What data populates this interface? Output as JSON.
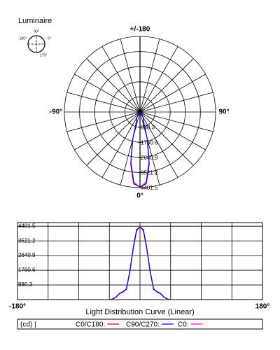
{
  "header": {
    "title": "Luminaire",
    "icon_labels": [
      "90°",
      "180°",
      "0°",
      "270°"
    ]
  },
  "chart_data": [
    {
      "type": "polar",
      "angle_labels": [
        {
          "value": 180,
          "label": "+/-180"
        },
        {
          "value": -90,
          "label": "-90°"
        },
        {
          "value": 90,
          "label": "90°"
        },
        {
          "value": 0,
          "label": "0°"
        }
      ],
      "grid_angle_step": 15,
      "rlim": [
        0,
        4401.5
      ],
      "rticks": [
        880.3,
        1760.6,
        2640.9,
        3521.2,
        4401.5
      ],
      "angles": [
        -40,
        -35,
        -30,
        -25,
        -20,
        -15,
        -10,
        -5,
        0,
        5,
        10,
        15,
        20,
        25,
        30,
        35,
        40
      ],
      "series": [
        {
          "color": "#ff0000",
          "values": [
            30,
            150,
            350,
            450,
            600,
            1600,
            3000,
            4100,
            4401.5,
            4100,
            3000,
            1600,
            600,
            450,
            350,
            150,
            30
          ]
        },
        {
          "color": "#0000ff",
          "values": [
            40,
            170,
            380,
            480,
            650,
            1700,
            3100,
            4200,
            4350,
            4200,
            3100,
            1700,
            650,
            480,
            380,
            170,
            40
          ]
        }
      ]
    },
    {
      "type": "line",
      "title": "Light Distribution Curve (Linear)",
      "unit": "(cd) |",
      "xlim": [
        -180,
        180
      ],
      "xticks": [
        {
          "value": -180,
          "label": "-180°"
        },
        {
          "value": 180,
          "label": "180°"
        }
      ],
      "xgrid": [
        -135,
        -90,
        -45,
        0,
        45,
        90,
        135
      ],
      "ylim": [
        0,
        4620
      ],
      "yticks": [
        880.3,
        1760.6,
        2640.9,
        3521.2,
        4401.5
      ],
      "x": [
        -45,
        -40,
        -35,
        -30,
        -25,
        -20,
        -15,
        -10,
        -5,
        0,
        5,
        10,
        15,
        20,
        25,
        30,
        35,
        40,
        45
      ],
      "series": [
        {
          "name": "C0/C180:",
          "color": "#ff0000",
          "values": [
            0,
            30,
            150,
            350,
            450,
            600,
            1600,
            3000,
            4100,
            4401.5,
            4100,
            3000,
            1600,
            600,
            450,
            350,
            150,
            30,
            0
          ]
        },
        {
          "name": "C90/C270:",
          "color": "#0000ff",
          "values": [
            0,
            40,
            170,
            380,
            480,
            650,
            1700,
            3100,
            4200,
            4350,
            4200,
            3100,
            1700,
            650,
            480,
            380,
            170,
            40,
            0
          ]
        },
        {
          "name": "C0:",
          "color": "#ff00ff"
        }
      ]
    }
  ]
}
